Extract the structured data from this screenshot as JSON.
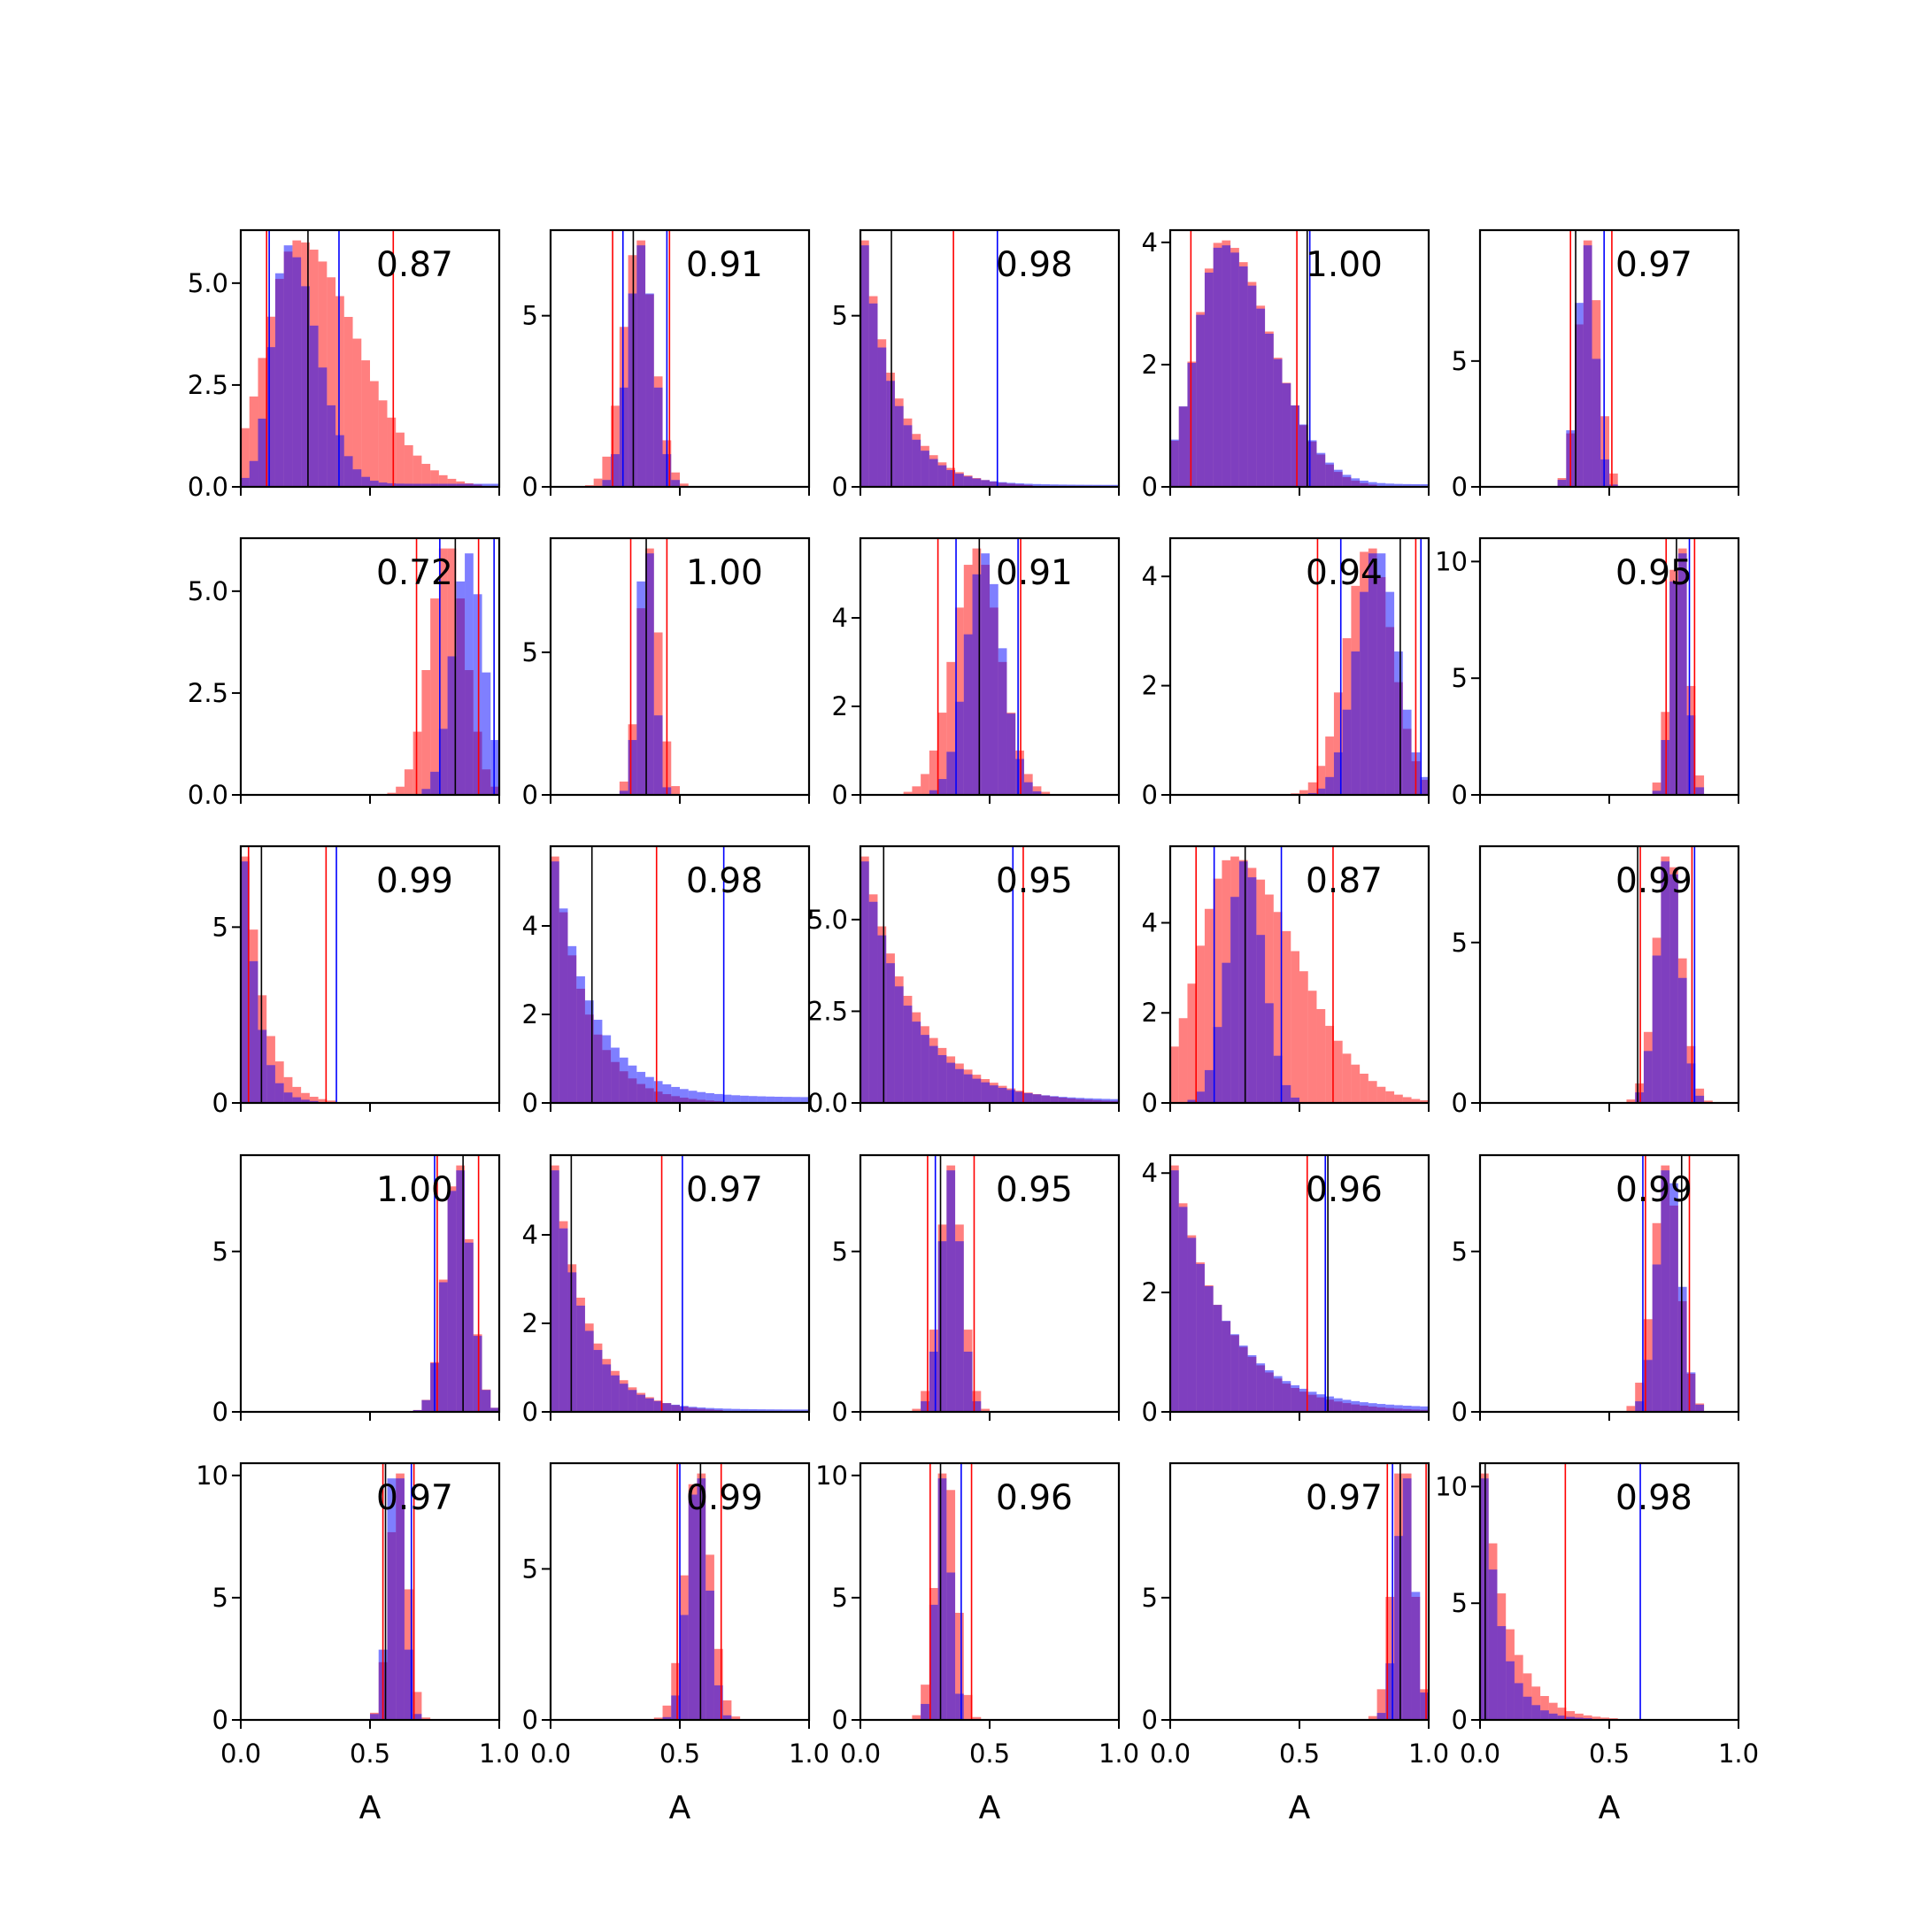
{
  "figure": {
    "rows": 5,
    "cols": 5,
    "colors": {
      "red": "#ff0000",
      "blue": "#0000ff",
      "black": "#000000",
      "overlap": "#7f3fbf"
    }
  },
  "chart_data": {
    "type": "bar",
    "xlabel": "A",
    "xlim": [
      0.0,
      1.0
    ],
    "xticks": [
      "0.0",
      "0.5",
      "1.0"
    ],
    "panels": [
      {
        "label": "0.87",
        "ylim": [
          0,
          6.3
        ],
        "yticks": [
          {
            "v": 0,
            "t": "0.0"
          },
          {
            "v": 2.5,
            "t": "2.5"
          },
          {
            "v": 5.0,
            "t": "5.0"
          }
        ],
        "red": {
          "mean": 0.22,
          "sd": 0.12,
          "skew": true
        },
        "blue": {
          "mean": 0.18,
          "sd": 0.06,
          "skew": true,
          "tail": 0.06
        },
        "redLines": [
          0.1,
          0.59
        ],
        "blueLines": [
          0.11,
          0.38
        ],
        "blackLines": [
          0.26
        ]
      },
      {
        "label": "0.91",
        "ylim": [
          0,
          7.5
        ],
        "yticks": [
          {
            "v": 0,
            "t": "0"
          },
          {
            "v": 5,
            "t": "5"
          }
        ],
        "red": {
          "mean": 0.34,
          "sd": 0.06
        },
        "blue": {
          "mean": 0.35,
          "sd": 0.05
        },
        "redLines": [
          0.24,
          0.46
        ],
        "blueLines": [
          0.28,
          0.45
        ],
        "blackLines": [
          0.32
        ]
      },
      {
        "label": "0.98",
        "ylim": [
          0,
          7.5
        ],
        "yticks": [
          {
            "v": 0,
            "t": "0"
          },
          {
            "v": 5,
            "t": "5"
          }
        ],
        "red": {
          "mean": 0.04,
          "sd": 0.13,
          "exp": true
        },
        "blue": {
          "mean": 0.02,
          "sd": 0.12,
          "exp": true,
          "tail": 0.05
        },
        "redLines": [
          0.36
        ],
        "blueLines": [
          0.53
        ],
        "blackLines": [
          0.12
        ]
      },
      {
        "label": "1.00",
        "ylim": [
          0,
          4.2
        ],
        "yticks": [
          {
            "v": 0,
            "t": "0"
          },
          {
            "v": 2,
            "t": "2"
          },
          {
            "v": 4,
            "t": "4"
          }
        ],
        "red": {
          "mean": 0.2,
          "sd": 0.1,
          "skew": true
        },
        "blue": {
          "mean": 0.2,
          "sd": 0.1,
          "skew": true,
          "tail": 0.03
        },
        "redLines": [
          0.08,
          0.49
        ],
        "blueLines": [
          0.54
        ],
        "blackLines": [
          0.53
        ]
      },
      {
        "label": "0.97",
        "ylim": [
          0,
          10.2
        ],
        "yticks": [
          {
            "v": 0,
            "t": "0"
          },
          {
            "v": 5,
            "t": "5"
          }
        ],
        "red": {
          "mean": 0.42,
          "sd": 0.04
        },
        "blue": {
          "mean": 0.41,
          "sd": 0.035
        },
        "redLines": [
          0.35,
          0.51
        ],
        "blueLines": [
          0.48
        ],
        "blackLines": [
          0.37
        ]
      },
      {
        "label": "0.72",
        "ylim": [
          0,
          6.3
        ],
        "yticks": [
          {
            "v": 0,
            "t": "0.0"
          },
          {
            "v": 2.5,
            "t": "2.5"
          },
          {
            "v": 5.0,
            "t": "5.0"
          }
        ],
        "red": {
          "mean": 0.8,
          "sd": 0.07
        },
        "blue": {
          "mean": 0.88,
          "sd": 0.06
        },
        "redLines": [
          0.68,
          0.92
        ],
        "blueLines": [
          0.77,
          0.98
        ],
        "blackLines": [
          0.83
        ]
      },
      {
        "label": "1.00",
        "ylim": [
          0,
          9.0
        ],
        "yticks": [
          {
            "v": 0,
            "t": "0"
          },
          {
            "v": 5,
            "t": "5"
          }
        ],
        "red": {
          "mean": 0.38,
          "sd": 0.04
        },
        "blue": {
          "mean": 0.37,
          "sd": 0.03
        },
        "redLines": [
          0.31,
          0.45
        ],
        "blueLines": [],
        "blackLines": [
          0.37
        ]
      },
      {
        "label": "0.91",
        "ylim": [
          0,
          5.8
        ],
        "yticks": [
          {
            "v": 0,
            "t": "0"
          },
          {
            "v": 2,
            "t": "2"
          },
          {
            "v": 4,
            "t": "4"
          }
        ],
        "red": {
          "mean": 0.45,
          "sd": 0.09
        },
        "blue": {
          "mean": 0.48,
          "sd": 0.07
        },
        "redLines": [
          0.3,
          0.62
        ],
        "blueLines": [
          0.37,
          0.61
        ],
        "blackLines": [
          0.46
        ]
      },
      {
        "label": "0.94",
        "ylim": [
          0,
          4.7
        ],
        "yticks": [
          {
            "v": 0,
            "t": "0"
          },
          {
            "v": 2,
            "t": "2"
          },
          {
            "v": 4,
            "t": "4"
          }
        ],
        "red": {
          "mean": 0.77,
          "sd": 0.09
        },
        "blue": {
          "mean": 0.8,
          "sd": 0.08
        },
        "redLines": [
          0.57,
          0.95
        ],
        "blueLines": [
          0.66,
          0.97
        ],
        "blackLines": [
          0.89
        ]
      },
      {
        "label": "0.95",
        "ylim": [
          0,
          11.0
        ],
        "yticks": [
          {
            "v": 0,
            "t": "0"
          },
          {
            "v": 5,
            "t": "5"
          },
          {
            "v": 10,
            "t": "10"
          }
        ],
        "red": {
          "mean": 0.77,
          "sd": 0.035
        },
        "blue": {
          "mean": 0.77,
          "sd": 0.03
        },
        "redLines": [
          0.72,
          0.83
        ],
        "blueLines": [
          0.81
        ],
        "blackLines": [
          0.76
        ]
      },
      {
        "label": "0.99",
        "ylim": [
          0,
          7.3
        ],
        "yticks": [
          {
            "v": 0,
            "t": "0"
          },
          {
            "v": 5,
            "t": "5"
          }
        ],
        "red": {
          "mean": 0.06,
          "sd": 0.07,
          "exp": true
        },
        "blue": {
          "mean": 0.06,
          "sd": 0.05,
          "exp": true,
          "tail": 0.04
        },
        "redLines": [
          0.03,
          0.33
        ],
        "blueLines": [
          0.37
        ],
        "blackLines": [
          0.08
        ]
      },
      {
        "label": "0.98",
        "ylim": [
          0,
          5.8
        ],
        "yticks": [
          {
            "v": 0,
            "t": "0"
          },
          {
            "v": 2,
            "t": "2"
          },
          {
            "v": 4,
            "t": "4"
          }
        ],
        "red": {
          "mean": 0.02,
          "sd": 0.13,
          "exp": true
        },
        "blue": {
          "mean": 0.02,
          "sd": 0.15,
          "exp": true,
          "tail": 0.12
        },
        "redLines": [
          0.41
        ],
        "blueLines": [
          0.67
        ],
        "blackLines": [
          0.16
        ]
      },
      {
        "label": "0.95",
        "ylim": [
          0,
          7.0
        ],
        "yticks": [
          {
            "v": 0,
            "t": "0.0"
          },
          {
            "v": 2.5,
            "t": "2.5"
          },
          {
            "v": 5.0,
            "t": "5.0"
          }
        ],
        "red": {
          "mean": 0.02,
          "sd": 0.2,
          "exp": true
        },
        "blue": {
          "mean": 0.02,
          "sd": 0.18,
          "exp": true,
          "tail": 0.05
        },
        "redLines": [
          0.63
        ],
        "blueLines": [
          0.59
        ],
        "blackLines": [
          0.09
        ]
      },
      {
        "label": "0.87",
        "ylim": [
          0,
          5.7
        ],
        "yticks": [
          {
            "v": 0,
            "t": "0"
          },
          {
            "v": 2,
            "t": "2"
          },
          {
            "v": 4,
            "t": "4"
          }
        ],
        "red": {
          "mean": 0.24,
          "sd": 0.13,
          "skew": true
        },
        "blue": {
          "mean": 0.29,
          "sd": 0.07
        },
        "redLines": [
          0.1,
          0.63
        ],
        "blueLines": [
          0.17,
          0.43
        ],
        "blackLines": [
          0.29
        ]
      },
      {
        "label": "0.99",
        "ylim": [
          0,
          8.0
        ],
        "yticks": [
          {
            "v": 0,
            "t": "0"
          },
          {
            "v": 5,
            "t": "5"
          }
        ],
        "red": {
          "mean": 0.73,
          "sd": 0.05
        },
        "blue": {
          "mean": 0.73,
          "sd": 0.045
        },
        "redLines": [
          0.62,
          0.82
        ],
        "blueLines": [
          0.83
        ],
        "blackLines": [
          0.61
        ]
      },
      {
        "label": "1.00",
        "ylim": [
          0,
          8.0
        ],
        "yticks": [
          {
            "v": 0,
            "t": "0"
          },
          {
            "v": 5,
            "t": "5"
          }
        ],
        "red": {
          "mean": 0.84,
          "sd": 0.05
        },
        "blue": {
          "mean": 0.84,
          "sd": 0.05
        },
        "redLines": [
          0.76,
          0.92
        ],
        "blueLines": [
          0.75
        ],
        "blackLines": [
          0.86
        ]
      },
      {
        "label": "0.97",
        "ylim": [
          0,
          5.8
        ],
        "yticks": [
          {
            "v": 0,
            "t": "0"
          },
          {
            "v": 2,
            "t": "2"
          },
          {
            "v": 4,
            "t": "4"
          }
        ],
        "red": {
          "mean": 0.04,
          "sd": 0.13,
          "exp": true
        },
        "blue": {
          "mean": 0.02,
          "sd": 0.12,
          "exp": true,
          "tail": 0.06
        },
        "redLines": [
          0.43
        ],
        "blueLines": [
          0.51
        ],
        "blackLines": [
          0.08
        ]
      },
      {
        "label": "0.95",
        "ylim": [
          0,
          8.0
        ],
        "yticks": [
          {
            "v": 0,
            "t": "0"
          },
          {
            "v": 5,
            "t": "5"
          }
        ],
        "red": {
          "mean": 0.35,
          "sd": 0.045
        },
        "blue": {
          "mean": 0.35,
          "sd": 0.04
        },
        "redLines": [
          0.26,
          0.44
        ],
        "blueLines": [
          0.29
        ],
        "blackLines": [
          0.31
        ]
      },
      {
        "label": "0.96",
        "ylim": [
          0,
          4.3
        ],
        "yticks": [
          {
            "v": 0,
            "t": "0"
          },
          {
            "v": 2,
            "t": "2"
          },
          {
            "v": 4,
            "t": "4"
          }
        ],
        "red": {
          "mean": 0.03,
          "sd": 0.2,
          "exp": true
        },
        "blue": {
          "mean": 0.03,
          "sd": 0.2,
          "exp": true,
          "tail": 0.06
        },
        "redLines": [
          0.53
        ],
        "blueLines": [
          0.6
        ],
        "blackLines": [
          0.61
        ]
      },
      {
        "label": "0.99",
        "ylim": [
          0,
          8.0
        ],
        "yticks": [
          {
            "v": 0,
            "t": "0"
          },
          {
            "v": 5,
            "t": "5"
          }
        ],
        "red": {
          "mean": 0.72,
          "sd": 0.05
        },
        "blue": {
          "mean": 0.73,
          "sd": 0.045
        },
        "redLines": [
          0.64,
          0.81
        ],
        "blueLines": [
          0.63
        ],
        "blackLines": [
          0.78
        ]
      },
      {
        "label": "0.97",
        "ylim": [
          0,
          10.5
        ],
        "yticks": [
          {
            "v": 0,
            "t": "0"
          },
          {
            "v": 5,
            "t": "5"
          },
          {
            "v": 10,
            "t": "10"
          }
        ],
        "red": {
          "mean": 0.61,
          "sd": 0.035
        },
        "blue": {
          "mean": 0.6,
          "sd": 0.03
        },
        "redLines": [
          0.55,
          0.67
        ],
        "blueLines": [
          0.66
        ],
        "blackLines": [
          0.56
        ]
      },
      {
        "label": "0.99",
        "ylim": [
          0,
          8.5
        ],
        "yticks": [
          {
            "v": 0,
            "t": "0"
          },
          {
            "v": 5,
            "t": "5"
          }
        ],
        "red": {
          "mean": 0.57,
          "sd": 0.05
        },
        "blue": {
          "mean": 0.57,
          "sd": 0.04
        },
        "redLines": [
          0.49,
          0.66
        ],
        "blueLines": [
          0.5
        ],
        "blackLines": [
          0.58
        ]
      },
      {
        "label": "0.96",
        "ylim": [
          0,
          10.5
        ],
        "yticks": [
          {
            "v": 0,
            "t": "0"
          },
          {
            "v": 5,
            "t": "5"
          },
          {
            "v": 10,
            "t": "10"
          }
        ],
        "red": {
          "mean": 0.33,
          "sd": 0.04
        },
        "blue": {
          "mean": 0.32,
          "sd": 0.03
        },
        "redLines": [
          0.27,
          0.43
        ],
        "blueLines": [
          0.39
        ],
        "blackLines": [
          0.31
        ]
      },
      {
        "label": "0.97",
        "ylim": [
          0,
          10.5
        ],
        "yticks": [
          {
            "v": 0,
            "t": "0"
          },
          {
            "v": 5,
            "t": "5"
          }
        ],
        "red": {
          "mean": 0.9,
          "sd": 0.04
        },
        "blue": {
          "mean": 0.91,
          "sd": 0.035
        },
        "redLines": [
          0.84,
          0.99
        ],
        "blueLines": [
          0.86
        ],
        "blackLines": [
          0.89
        ]
      },
      {
        "label": "0.98",
        "ylim": [
          0,
          11.0
        ],
        "yticks": [
          {
            "v": 0,
            "t": "0"
          },
          {
            "v": 5,
            "t": "5"
          },
          {
            "v": 10,
            "t": "10"
          }
        ],
        "red": {
          "mean": 0.02,
          "sd": 0.1,
          "exp": true
        },
        "blue": {
          "mean": 0.01,
          "sd": 0.07,
          "exp": true,
          "tail": 0.04
        },
        "redLines": [
          0.33
        ],
        "blueLines": [
          0.62
        ],
        "blackLines": [
          0.02
        ]
      }
    ]
  }
}
